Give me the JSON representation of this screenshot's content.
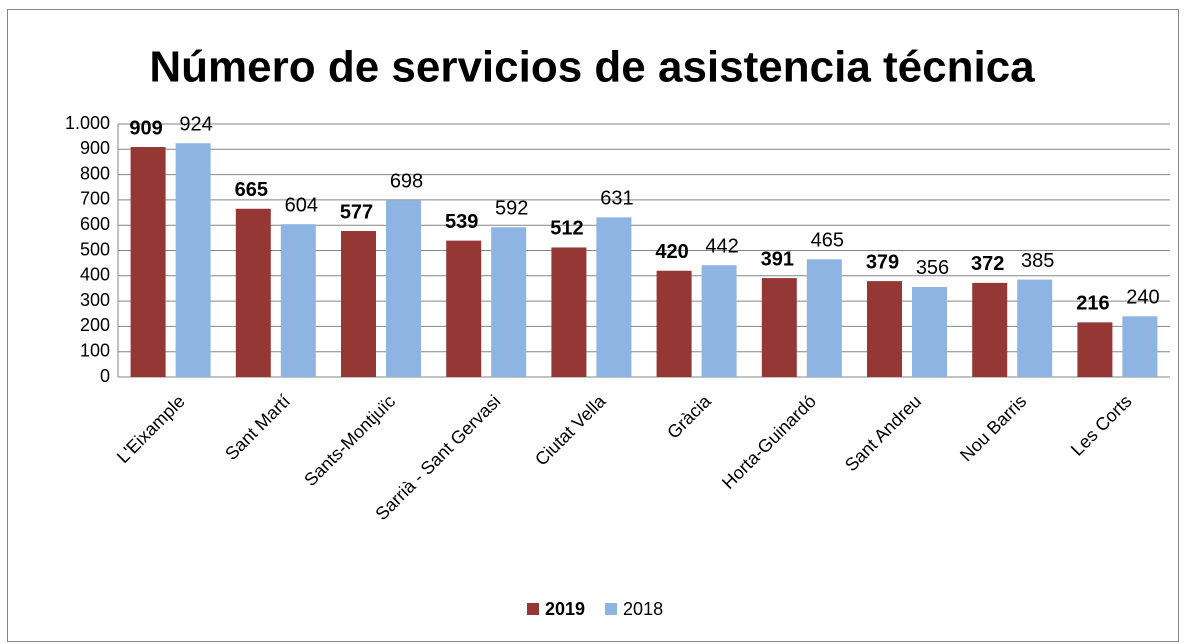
{
  "chart_data": {
    "type": "bar",
    "title": "Número de servicios de asistencia técnica",
    "categories": [
      "L'Eixample",
      "Sant Martí",
      "Sants-Montjuïc",
      "Sarrià - Sant Gervasi",
      "Ciutat Vella",
      "Gràcia",
      "Horta-Guinardó",
      "Sant Andreu",
      "Nou Barris",
      "Les Corts"
    ],
    "series": [
      {
        "name": "2019",
        "color": "#953735",
        "values": [
          909,
          665,
          577,
          539,
          512,
          420,
          391,
          379,
          372,
          216
        ]
      },
      {
        "name": "2018",
        "color": "#8eb4e3",
        "values": [
          924,
          604,
          698,
          592,
          631,
          442,
          465,
          356,
          385,
          240
        ]
      }
    ],
    "ylim": [
      0,
      1000
    ],
    "yticks": [
      0,
      100,
      200,
      300,
      400,
      500,
      600,
      700,
      800,
      900,
      {
        "value": 1000,
        "label": "1.000"
      }
    ],
    "grid": true,
    "legend": "bottom"
  }
}
